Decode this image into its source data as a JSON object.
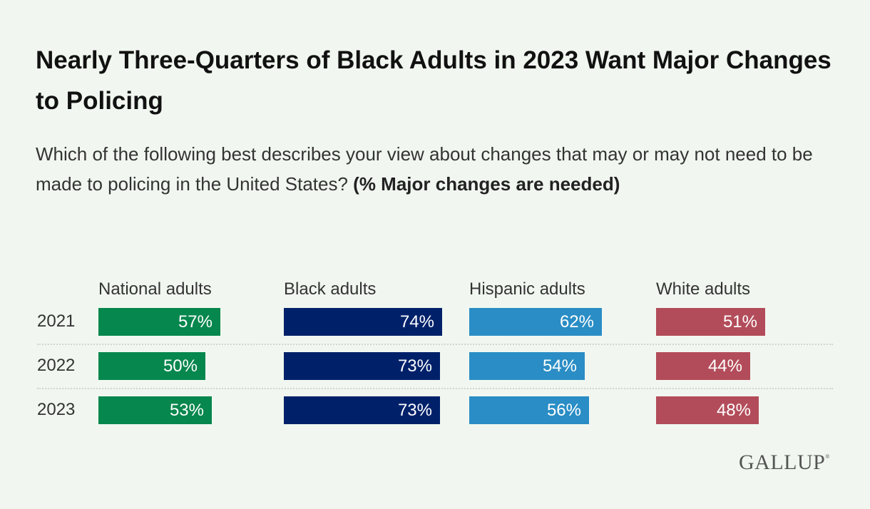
{
  "chart_data": {
    "type": "bar",
    "title": "Nearly Three-Quarters of Black Adults in 2023 Want Major Changes to Policing",
    "subtitle": "Which of the following best describes your view about changes that may or may not need to be made to policing in the United States?",
    "subtitle_bold": "(% Major changes are needed)",
    "categories": [
      "2021",
      "2022",
      "2023"
    ],
    "series": [
      {
        "name": "National adults",
        "color": "#06874d",
        "values": [
          57,
          50,
          53
        ],
        "labels": [
          "57%",
          "50%",
          "53%"
        ]
      },
      {
        "name": "Black adults",
        "color": "#00216a",
        "values": [
          74,
          73,
          73
        ],
        "labels": [
          "74%",
          "73%",
          "73%"
        ]
      },
      {
        "name": "Hispanic adults",
        "color": "#2a8dc5",
        "values": [
          62,
          54,
          56
        ],
        "labels": [
          "62%",
          "54%",
          "56%"
        ]
      },
      {
        "name": "White adults",
        "color": "#b34c5a",
        "values": [
          51,
          44,
          48
        ],
        "labels": [
          "51%",
          "44%",
          "48%"
        ]
      }
    ],
    "ylim": [
      0,
      100
    ]
  },
  "source": {
    "logo": "GALLUP",
    "registered": "®"
  }
}
